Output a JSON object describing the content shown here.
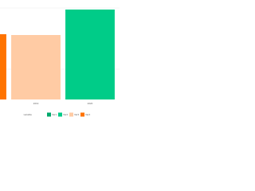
{
  "chart_data": {
    "type": "bar",
    "categories": [
      null,
      "2019",
      "2020"
    ],
    "series": [
      {
        "name": "Var1",
        "color": "#00a86b",
        "values": [
          null,
          null,
          null
        ]
      },
      {
        "name": "Var2",
        "color": "#00cc88",
        "values": [
          null,
          null,
          113
        ]
      },
      {
        "name": "Var3",
        "color": "#ffcba4",
        "values": [
          null,
          81,
          null
        ]
      },
      {
        "name": "Var4",
        "color": "#ff7300",
        "values": [
          82,
          null,
          null
        ]
      }
    ],
    "legend_title": "variable",
    "legend": "bottom",
    "ylim": [
      0,
      120
    ]
  }
}
